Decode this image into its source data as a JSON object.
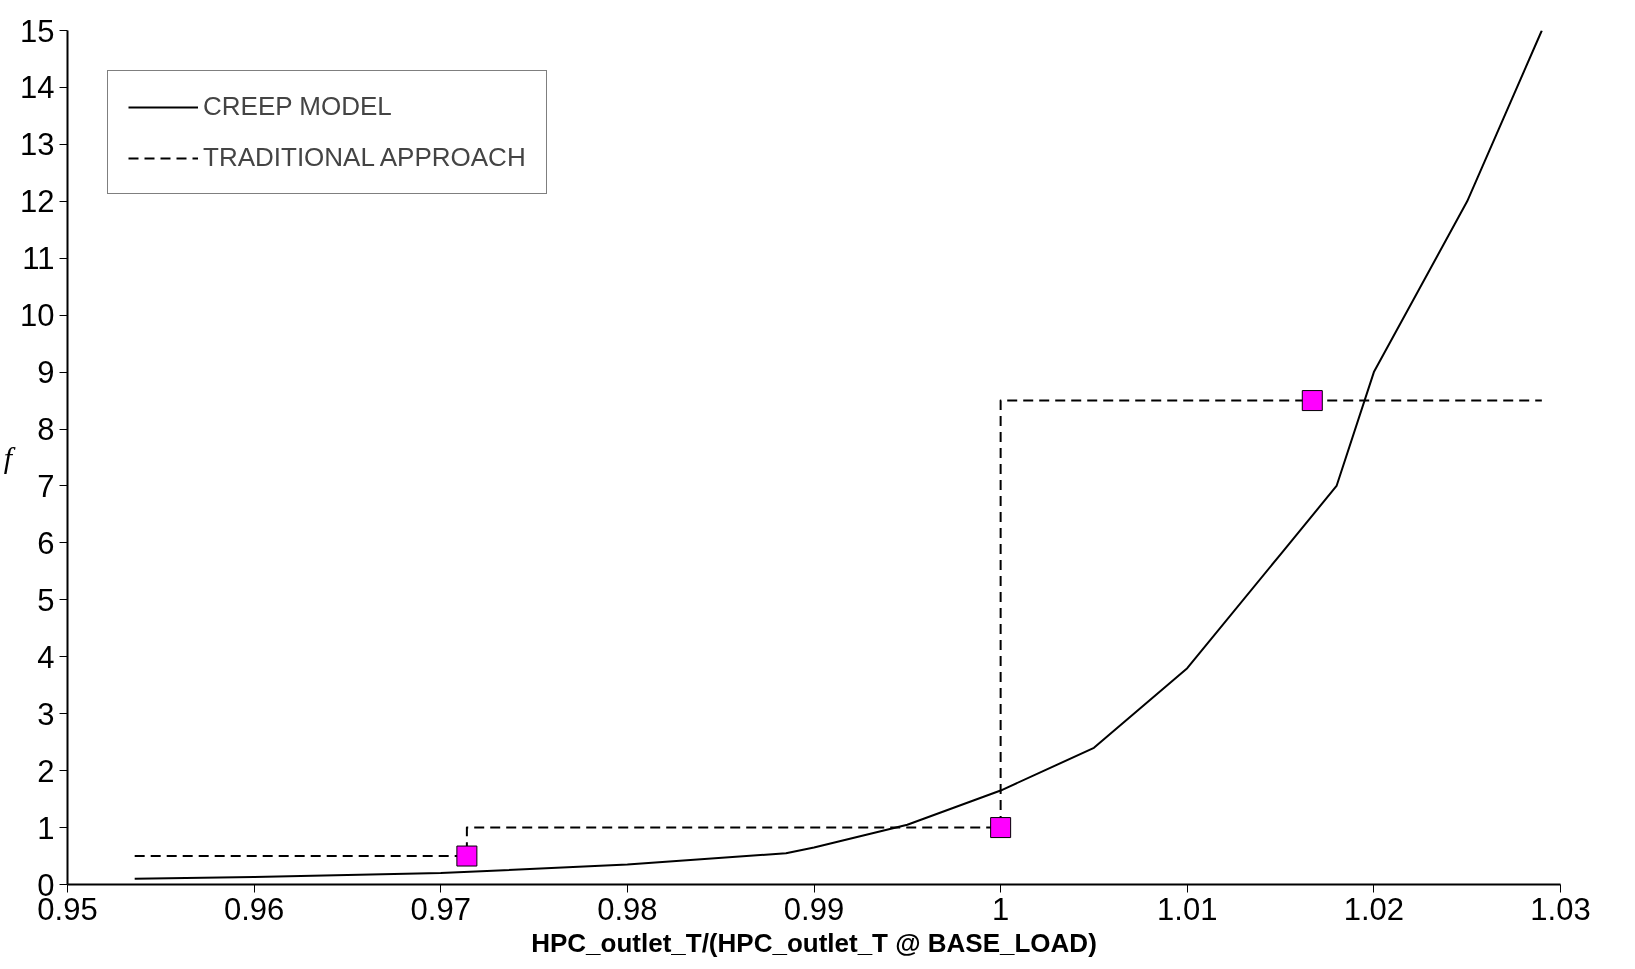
{
  "chart_data": {
    "type": "line",
    "xlabel": "HPC_outlet_T/(HPC_outlet_T @ BASE_LOAD)",
    "ylabel": "f",
    "xlim": [
      0.95,
      1.03
    ],
    "ylim": [
      0,
      15
    ],
    "xticks": [
      0.95,
      0.96,
      0.97,
      0.98,
      0.99,
      1,
      1.01,
      1.02,
      1.03
    ],
    "yticks": [
      0,
      1,
      2,
      3,
      4,
      5,
      6,
      7,
      8,
      9,
      10,
      11,
      12,
      13,
      14,
      15
    ],
    "grid": false,
    "legend": "top left",
    "series": [
      {
        "name": "CREEP MODEL",
        "color": "#000000",
        "line_style": "solid",
        "marker": "none",
        "x": [
          0.9536,
          0.96,
          0.97,
          0.98,
          0.9885,
          0.99,
          0.995,
          1.0,
          1.005,
          1.01,
          1.015,
          1.018,
          1.02,
          1.025,
          1.029
        ],
        "values": [
          0.1,
          0.13,
          0.2,
          0.35,
          0.55,
          0.65,
          1.05,
          1.65,
          2.4,
          3.8,
          5.8,
          7.0,
          9.0,
          12.0,
          15.0
        ]
      },
      {
        "name": "TRADITIONAL APPROACH",
        "type": "step",
        "color": "#000000",
        "line_style": "dashed",
        "marker": "none",
        "x": [
          0.9536,
          0.9714,
          1.0,
          1.029
        ],
        "values": [
          0.5,
          1.0,
          8.5,
          8.5
        ]
      },
      {
        "type": "scatter",
        "color": "#ff00ff",
        "marker": "square",
        "x": [
          0.9714,
          1.0,
          1.0167
        ],
        "values": [
          0.5,
          1.0,
          8.5
        ]
      }
    ]
  }
}
